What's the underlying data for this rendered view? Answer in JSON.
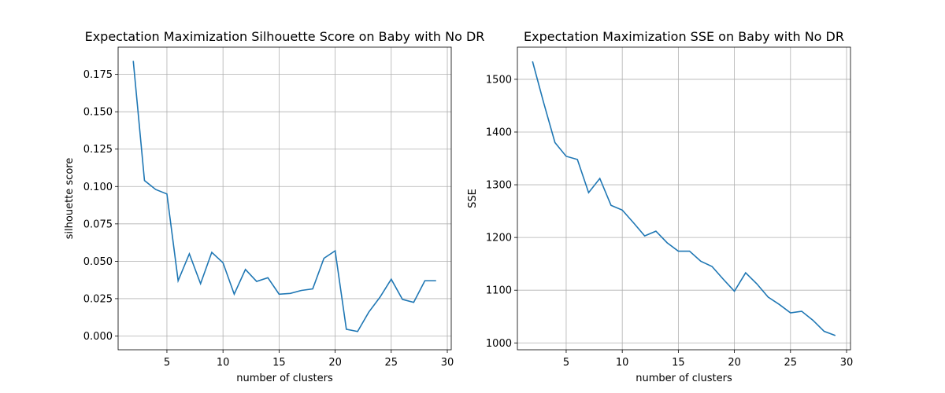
{
  "chart_data": [
    {
      "type": "line",
      "title": "Expectation Maximization Silhouette Score on Baby with No DR",
      "xlabel": "number of clusters",
      "ylabel": "silhouette score",
      "xlim": [
        0.65,
        30.35
      ],
      "ylim": [
        -0.0092,
        0.1932
      ],
      "xticks": [
        5,
        10,
        15,
        20,
        25,
        30
      ],
      "yticks": [
        0.0,
        0.025,
        0.05,
        0.075,
        0.1,
        0.125,
        0.15,
        0.175
      ],
      "ytick_labels": [
        "0.000",
        "0.025",
        "0.050",
        "0.075",
        "0.100",
        "0.125",
        "0.150",
        "0.175"
      ],
      "grid": true,
      "color": "#1f77b4",
      "x": [
        2,
        3,
        4,
        5,
        6,
        7,
        8,
        9,
        10,
        11,
        12,
        13,
        14,
        15,
        16,
        17,
        18,
        19,
        20,
        21,
        22,
        23,
        24,
        25,
        26,
        27,
        28,
        29
      ],
      "y": [
        0.184,
        0.104,
        0.098,
        0.095,
        0.037,
        0.055,
        0.035,
        0.056,
        0.049,
        0.028,
        0.0445,
        0.0365,
        0.039,
        0.028,
        0.0285,
        0.0305,
        0.0315,
        0.052,
        0.057,
        0.0045,
        0.003,
        0.016,
        0.026,
        0.038,
        0.0245,
        0.0225,
        0.037,
        0.037
      ]
    },
    {
      "type": "line",
      "title": "Expectation Maximization SSE on Baby with No DR",
      "xlabel": "number of clusters",
      "ylabel": "SSE",
      "xlim": [
        0.65,
        30.35
      ],
      "ylim": [
        987,
        1561
      ],
      "xticks": [
        5,
        10,
        15,
        20,
        25,
        30
      ],
      "yticks": [
        1000,
        1100,
        1200,
        1300,
        1400,
        1500
      ],
      "ytick_labels": [
        "1000",
        "1100",
        "1200",
        "1300",
        "1400",
        "1500"
      ],
      "grid": true,
      "color": "#1f77b4",
      "x": [
        2,
        3,
        4,
        5,
        6,
        7,
        8,
        9,
        10,
        11,
        12,
        13,
        14,
        15,
        16,
        17,
        18,
        19,
        20,
        21,
        22,
        23,
        24,
        25,
        26,
        27,
        28,
        29
      ],
      "y": [
        1534,
        1455,
        1380,
        1354,
        1348,
        1285,
        1312,
        1261,
        1252,
        1228,
        1203,
        1212,
        1190,
        1174,
        1174,
        1155,
        1145,
        1121,
        1098,
        1133,
        1112,
        1087,
        1073,
        1057,
        1060,
        1043,
        1022,
        1014
      ]
    }
  ]
}
